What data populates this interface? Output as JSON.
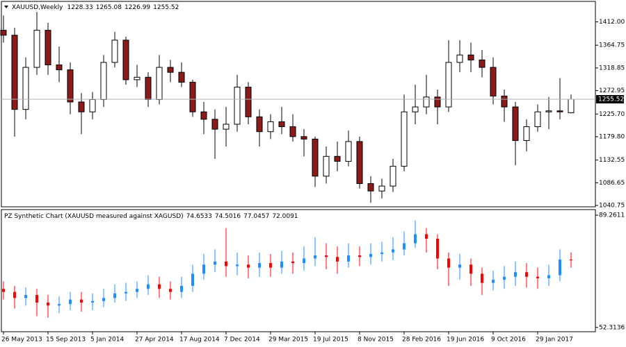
{
  "chart_data": [
    {
      "type": "candlestick",
      "title": "XAUUSD,Weekly",
      "categories": [
        "26 May 2013",
        null,
        null,
        null,
        "15 Sep 2013",
        null,
        null,
        null,
        "5 Jan 2014",
        null,
        null,
        null,
        "27 Apr 2014",
        null,
        null,
        null,
        "17 Aug 2014",
        null,
        null,
        null,
        "7 Dec 2014",
        null,
        null,
        null,
        "29 Mar 2015",
        null,
        null,
        null,
        "19 Jul 2015",
        null,
        null,
        null,
        "8 Nov 2015",
        null,
        null,
        null,
        "28 Feb 2016",
        null,
        null,
        null,
        "19 Jun 2016",
        null,
        null,
        null,
        "9 Oct 2016",
        null,
        null,
        null,
        "29 Jan 2017",
        null,
        null,
        null
      ],
      "open": [
        1395,
        1385,
        1235,
        1320,
        1395,
        1325,
        1315,
        1250,
        1230,
        1255,
        1330,
        1375,
        1295,
        1300,
        1255,
        1320,
        1310,
        1290,
        1230,
        1215,
        1195,
        1205,
        1280,
        1220,
        1190,
        1210,
        1200,
        1180,
        1175,
        1100,
        1140,
        1130,
        1170,
        1085,
        1070,
        1080,
        1120,
        1230,
        1240,
        1260,
        1240,
        1330,
        1345,
        1335,
        1320,
        1262,
        1240,
        1172,
        1200,
        1230,
        1232,
        1228.33
      ],
      "high": [
        1425,
        1400,
        1340,
        1432,
        1410,
        1362,
        1330,
        1268,
        1270,
        1345,
        1392,
        1382,
        1325,
        1310,
        1345,
        1335,
        1330,
        1295,
        1250,
        1235,
        1240,
        1305,
        1290,
        1235,
        1225,
        1240,
        1225,
        1195,
        1180,
        1160,
        1170,
        1192,
        1180,
        1100,
        1095,
        1135,
        1265,
        1285,
        1305,
        1275,
        1375,
        1375,
        1370,
        1355,
        1340,
        1275,
        1250,
        1215,
        1245,
        1260,
        1298,
        1265.08
      ],
      "low": [
        1370,
        1180,
        1215,
        1305,
        1305,
        1290,
        1225,
        1185,
        1215,
        1240,
        1320,
        1285,
        1280,
        1240,
        1245,
        1290,
        1280,
        1220,
        1185,
        1135,
        1160,
        1190,
        1205,
        1160,
        1175,
        1185,
        1170,
        1140,
        1078,
        1085,
        1110,
        1120,
        1075,
        1046,
        1055,
        1068,
        1110,
        1205,
        1225,
        1205,
        1230,
        1310,
        1310,
        1300,
        1245,
        1210,
        1122,
        1150,
        1190,
        1195,
        1215,
        1226.99
      ],
      "close": [
        1385,
        1235,
        1320,
        1395,
        1325,
        1315,
        1250,
        1230,
        1255,
        1330,
        1375,
        1295,
        1300,
        1255,
        1320,
        1310,
        1290,
        1230,
        1215,
        1195,
        1205,
        1280,
        1220,
        1190,
        1210,
        1200,
        1180,
        1175,
        1100,
        1140,
        1130,
        1170,
        1085,
        1070,
        1080,
        1120,
        1230,
        1240,
        1260,
        1240,
        1330,
        1345,
        1335,
        1320,
        1262,
        1240,
        1172,
        1200,
        1230,
        1232,
        1230,
        1255.52
      ],
      "ylim": [
        1038,
        1452
      ],
      "yticks": [
        {
          "value": 1412,
          "label": "1412.00"
        },
        1364.75,
        1318.85,
        1272.95,
        {
          "value": 1225.7,
          "label": "1225.70"
        },
        {
          "value": 1179.8,
          "label": "1179.80"
        },
        1132.55,
        1086.65,
        1040.75
      ],
      "up_color": "#ffffff",
      "down_color": "#8b1a1a"
    },
    {
      "type": "candlestick",
      "title": "PZ Synthetic Chart (XAUUSD measured against XAGUSD)",
      "open": [
        65,
        64,
        62,
        63,
        60.5,
        59.5,
        60,
        61.5,
        60.5,
        61,
        62,
        63.5,
        64,
        65,
        66.5,
        65,
        64,
        66,
        70,
        73,
        74,
        72.5,
        73,
        72,
        73.5,
        72,
        74,
        73.5,
        75,
        76,
        75.5,
        74,
        76,
        75.5,
        76.5,
        77,
        78,
        80,
        83,
        81.5,
        75,
        72,
        73,
        70,
        67,
        68,
        69,
        70.5,
        69,
        68.5,
        69.5,
        74.6533
      ],
      "close": [
        64,
        62,
        63,
        60.5,
        59.5,
        60,
        61.5,
        60.5,
        61,
        62,
        63.5,
        64,
        65,
        66.5,
        65,
        64,
        66,
        70,
        73,
        74,
        72.5,
        73,
        72,
        73.5,
        72,
        74,
        73.5,
        75,
        76,
        75.5,
        74,
        76,
        75.5,
        76.5,
        77,
        78,
        80,
        83,
        81.5,
        75,
        72,
        73,
        70,
        67,
        68,
        69,
        70.5,
        69,
        68.5,
        69.5,
        74.6533,
        74.5016
      ],
      "high": [
        67.5,
        66,
        65.5,
        65,
        63,
        62.5,
        64,
        64,
        63.5,
        65,
        66.5,
        67,
        67.5,
        69.5,
        69,
        67.5,
        69,
        73,
        76.5,
        78,
        85,
        77,
        76,
        77,
        76.5,
        77.5,
        77,
        79,
        82,
        80,
        79,
        80,
        79,
        80,
        80.5,
        82,
        84,
        87.5,
        85,
        83,
        77,
        76.5,
        75,
        72,
        71,
        72.5,
        74,
        73.5,
        72,
        73,
        78,
        77.0457
      ],
      "low": [
        61.5,
        58.5,
        59.5,
        56,
        55.5,
        57,
        58,
        57.5,
        58,
        59,
        60.5,
        61,
        62,
        63,
        62,
        61.5,
        62,
        64,
        68,
        70.5,
        69,
        69.5,
        68.5,
        69,
        69,
        70,
        70,
        71,
        72.5,
        71.5,
        70,
        72,
        72.5,
        73,
        74,
        74.5,
        76,
        78.5,
        77,
        71.5,
        66,
        68,
        66,
        63,
        64.5,
        65,
        66,
        65.5,
        65,
        66,
        67.5,
        72.0091
      ],
      "ylim": [
        50.9,
        91.1
      ],
      "yticks": [
        89.2611,
        52.3136
      ],
      "up_color": "#1e90ff",
      "down_color": "#ff0000"
    }
  ]
}
